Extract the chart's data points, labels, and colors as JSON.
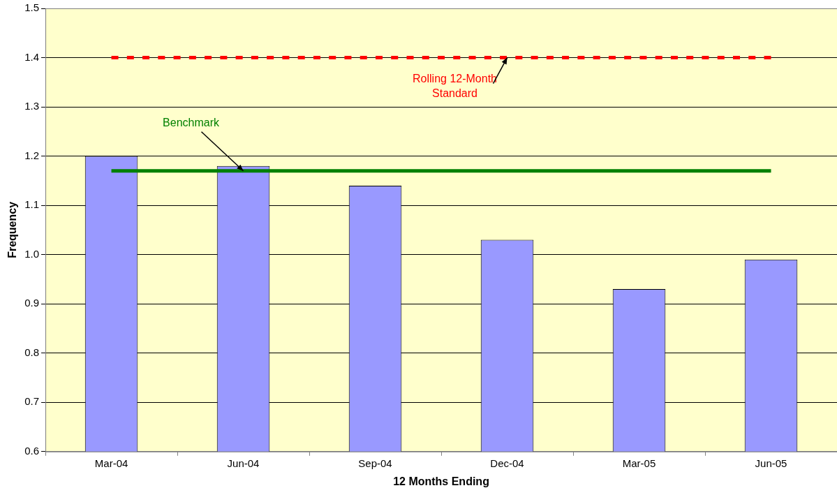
{
  "chart_data": {
    "type": "bar",
    "xlabel": "12 Months Ending",
    "ylabel": "Frequency",
    "categories": [
      "Mar-04",
      "Jun-04",
      "Sep-04",
      "Dec-04",
      "Mar-05",
      "Jun-05"
    ],
    "series": [
      {
        "color": "#9999ff",
        "values": [
          1.2,
          1.18,
          1.14,
          1.03,
          0.93,
          0.99
        ]
      },
      {
        "type": "line",
        "color": "#ff0000",
        "line_style": "dashed",
        "marker": "none",
        "values": [
          1.4,
          1.4,
          1.4,
          1.4,
          1.4,
          1.4
        ]
      },
      {
        "type": "line",
        "color": "#008000",
        "line_style": "solid",
        "marker": "none",
        "values": [
          1.17,
          1.17,
          1.17,
          1.17,
          1.17,
          1.17
        ]
      }
    ],
    "ylim": [
      0.6,
      1.5
    ],
    "yticks": [
      0.6,
      0.7,
      0.8,
      0.9,
      {
        "value": 1,
        "label": "1.0"
      },
      1.1,
      1.2,
      1.3,
      1.4,
      1.5
    ],
    "grid": "y",
    "legend": false,
    "annotations": [
      {
        "text": "Rolling 12-Month Standard",
        "x": "Dec-04",
        "y": 1.4
      },
      {
        "text": "Benchmark",
        "x": "Jun-04",
        "y": 1.17
      }
    ]
  }
}
